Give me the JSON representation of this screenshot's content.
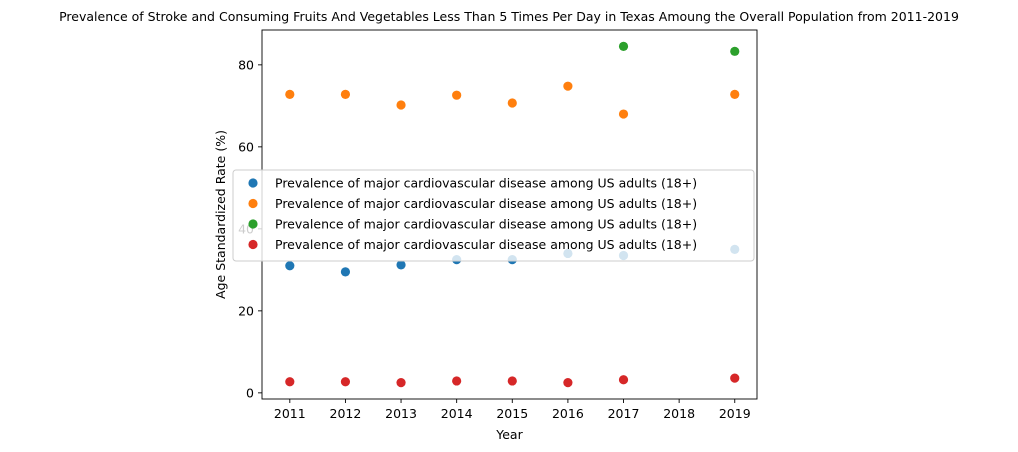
{
  "chart_data": {
    "type": "scatter",
    "title": "Prevalence of Stroke and Consuming Fruits And Vegetables Less Than 5 Times Per Day in Texas Amoung the Overall Population from 2011-2019",
    "xlabel": "Year",
    "ylabel": "Age Standardized Rate (%)",
    "xlim": [
      2010.5,
      2019.4
    ],
    "ylim": [
      -1.5,
      88.5
    ],
    "xticks": [
      "2011",
      "2012",
      "2013",
      "2014",
      "2015",
      "2016",
      "2017",
      "2018",
      "2019"
    ],
    "yticks": [
      "0",
      "20",
      "40",
      "60",
      "80"
    ],
    "grid": false,
    "legend_placement": "center-left",
    "series": [
      {
        "name": "Prevalence of major cardiovascular disease among US adults (18+)",
        "color": "#1f77b4",
        "points": [
          [
            2011,
            31.0
          ],
          [
            2012,
            29.5
          ],
          [
            2013,
            31.2
          ],
          [
            2014,
            32.5
          ],
          [
            2015,
            32.5
          ],
          [
            2016,
            34.0
          ],
          [
            2017,
            33.5
          ],
          [
            2019,
            35.0
          ]
        ]
      },
      {
        "name": "Prevalence of major cardiovascular disease among US adults (18+)",
        "color": "#ff7f0e",
        "points": [
          [
            2011,
            72.8
          ],
          [
            2012,
            72.8
          ],
          [
            2013,
            70.2
          ],
          [
            2014,
            72.6
          ],
          [
            2015,
            70.7
          ],
          [
            2016,
            74.8
          ],
          [
            2017,
            68.0
          ],
          [
            2019,
            72.8
          ]
        ]
      },
      {
        "name": "Prevalence of major cardiovascular disease among US adults (18+)",
        "color": "#2ca02c",
        "points": [
          [
            2017,
            84.5
          ],
          [
            2019,
            83.3
          ]
        ]
      },
      {
        "name": "Prevalence of major cardiovascular disease among US adults (18+)",
        "color": "#d62728",
        "points": [
          [
            2011,
            2.7
          ],
          [
            2012,
            2.7
          ],
          [
            2013,
            2.5
          ],
          [
            2014,
            2.9
          ],
          [
            2015,
            2.9
          ],
          [
            2016,
            2.5
          ],
          [
            2017,
            3.2
          ],
          [
            2019,
            3.6
          ]
        ]
      }
    ]
  }
}
